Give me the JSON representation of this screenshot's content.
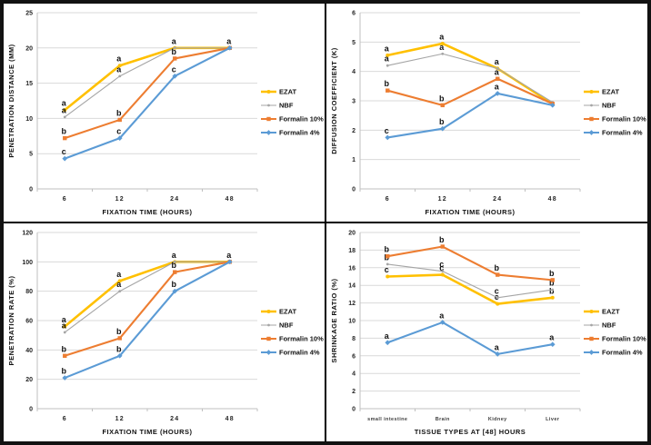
{
  "palette": {
    "ezat": "#FFC000",
    "nbf": "#A5A5A5",
    "formalin10": "#ED7D31",
    "formalin4": "#5B9BD5",
    "gridline": "#D9D9D9",
    "axis": "#BFBFBF",
    "frame_border": "#121212",
    "chart_background": "#FFFFFF"
  },
  "chart_data": [
    {
      "id": "penetration-distance",
      "type": "line",
      "title": "",
      "xlabel": "FIXATION TIME  (HOURS)",
      "ylabel": "PENETRATION DISTANCE  (MM)",
      "categories": [
        "6",
        "12",
        "24",
        "48"
      ],
      "ylim": [
        0,
        25
      ],
      "ytick_step": 5,
      "grid": true,
      "legend_position": "right",
      "series": [
        {
          "name": "EZAT",
          "color": "#FFC000",
          "values": [
            11.2,
            17.5,
            20,
            20
          ],
          "point_labels": [
            "a",
            "a",
            "a",
            "a"
          ]
        },
        {
          "name": "NBF",
          "color": "#A5A5A5",
          "values": [
            10.2,
            16,
            20,
            20
          ],
          "point_labels": [
            "a",
            "a",
            "",
            ""
          ]
        },
        {
          "name": "Formalin 10%",
          "color": "#ED7D31",
          "values": [
            7.2,
            9.8,
            18.5,
            20
          ],
          "point_labels": [
            "b",
            "b",
            "b",
            ""
          ]
        },
        {
          "name": "Formalin 4%",
          "color": "#5B9BD5",
          "values": [
            4.3,
            7.2,
            16,
            20
          ],
          "point_labels": [
            "c",
            "c",
            "c",
            ""
          ]
        }
      ]
    },
    {
      "id": "diffusion-coefficient",
      "type": "line",
      "title": "",
      "xlabel": "FIXATION TIME (HOURS)",
      "ylabel": "DIFFUSION COEFFICIENT (K)",
      "categories": [
        "6",
        "12",
        "24",
        "48"
      ],
      "ylim": [
        0,
        6
      ],
      "ytick_step": 1,
      "grid": true,
      "legend_position": "right",
      "series": [
        {
          "name": "EZAT",
          "color": "#FFC000",
          "values": [
            4.55,
            4.95,
            4.1,
            2.9
          ],
          "point_labels": [
            "a",
            "a",
            "a",
            ""
          ]
        },
        {
          "name": "NBF",
          "color": "#A5A5A5",
          "values": [
            4.2,
            4.6,
            4.1,
            2.95
          ],
          "point_labels": [
            "a",
            "a",
            "",
            ""
          ]
        },
        {
          "name": "Formalin 10%",
          "color": "#ED7D31",
          "values": [
            3.35,
            2.85,
            3.75,
            2.9
          ],
          "point_labels": [
            "b",
            "b",
            "a",
            ""
          ]
        },
        {
          "name": "Formalin 4%",
          "color": "#5B9BD5",
          "values": [
            1.75,
            2.05,
            3.25,
            2.85
          ],
          "point_labels": [
            "c",
            "b",
            "a",
            ""
          ]
        }
      ]
    },
    {
      "id": "penetration-rate",
      "type": "line",
      "title": "",
      "xlabel": "FIXATION TIME (HOURS)",
      "ylabel": "PENETRATION RATE (%)",
      "categories": [
        "6",
        "12",
        "24",
        "48"
      ],
      "ylim": [
        0,
        120
      ],
      "ytick_step": 20,
      "grid": true,
      "legend_position": "right",
      "series": [
        {
          "name": "EZAT",
          "color": "#FFC000",
          "values": [
            56,
            87,
            100,
            100
          ],
          "point_labels": [
            "a",
            "a",
            "a",
            "a"
          ]
        },
        {
          "name": "NBF",
          "color": "#A5A5A5",
          "values": [
            52,
            80,
            100,
            100
          ],
          "point_labels": [
            "a",
            "a",
            "",
            ""
          ]
        },
        {
          "name": "Formalin 10%",
          "color": "#ED7D31",
          "values": [
            36,
            48,
            93,
            100
          ],
          "point_labels": [
            "b",
            "b",
            "b",
            ""
          ]
        },
        {
          "name": "Formalin 4%",
          "color": "#5B9BD5",
          "values": [
            21,
            36,
            80,
            100
          ],
          "point_labels": [
            "b",
            "b",
            "b",
            ""
          ]
        }
      ]
    },
    {
      "id": "shrinkage-ratio",
      "type": "line",
      "title": "",
      "xlabel": "TISSUE TYPES AT [48] HOURS",
      "ylabel": "SHRINKAGE RATIO  (%)",
      "categories": [
        "small intestine",
        "Brain",
        "Kidney",
        "Liver"
      ],
      "ylim": [
        0,
        20
      ],
      "ytick_step": 2,
      "grid": true,
      "legend_position": "right",
      "series": [
        {
          "name": "EAZT",
          "color": "#FFC000",
          "values": [
            15,
            15.2,
            11.9,
            12.6
          ],
          "point_labels": [
            "c",
            "c",
            "c",
            "b"
          ]
        },
        {
          "name": "NBF",
          "color": "#A5A5A5",
          "values": [
            16.4,
            15.6,
            12.6,
            13.5
          ],
          "point_labels": [
            "b",
            "c",
            "c",
            "b"
          ]
        },
        {
          "name": "Formalin 10%",
          "color": "#ED7D31",
          "values": [
            17.3,
            18.4,
            15.2,
            14.6
          ],
          "point_labels": [
            "b",
            "b",
            "b",
            "b"
          ]
        },
        {
          "name": "Formalin 4%",
          "color": "#5B9BD5",
          "values": [
            7.5,
            9.8,
            6.2,
            7.3
          ],
          "point_labels": [
            "a",
            "a",
            "a",
            "a"
          ]
        }
      ]
    }
  ]
}
